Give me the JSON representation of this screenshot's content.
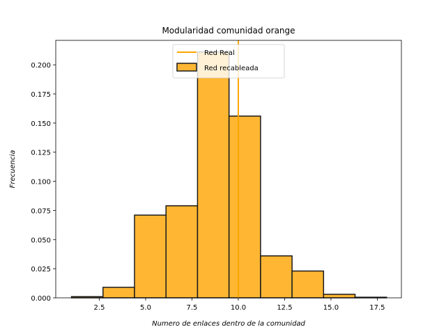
{
  "chart_data": {
    "type": "bar",
    "title": "Modularidad  comunidad orange",
    "xlabel": "Numero de enlaces dentro de la comunidad",
    "ylabel": "Frecuencia",
    "xlim": [
      0.15,
      18.8
    ],
    "ylim": [
      0,
      0.221
    ],
    "xticks": [
      "2.5",
      "5.0",
      "7.5",
      "10.0",
      "12.5",
      "15.0",
      "17.5"
    ],
    "xtick_values": [
      2.5,
      5.0,
      7.5,
      10.0,
      12.5,
      15.0,
      17.5
    ],
    "yticks": [
      "0.000",
      "0.025",
      "0.050",
      "0.075",
      "0.100",
      "0.125",
      "0.150",
      "0.175",
      "0.200"
    ],
    "ytick_values": [
      0,
      0.025,
      0.05,
      0.075,
      0.1,
      0.125,
      0.15,
      0.175,
      0.2
    ],
    "bin_edges": [
      1.0,
      2.7,
      4.4,
      6.1,
      7.8,
      9.5,
      11.2,
      12.9,
      14.6,
      16.3,
      18.0
    ],
    "values": [
      0.001,
      0.009,
      0.071,
      0.079,
      0.211,
      0.156,
      0.036,
      0.023,
      0.003,
      0.0005
    ],
    "vline": 10.0,
    "grid": false,
    "legend_position": "top-center",
    "series": [
      {
        "name": "Red Real",
        "kind": "vline",
        "color": "#ffa500"
      },
      {
        "name": "Red recableada",
        "kind": "hist",
        "color": "#ffa500"
      }
    ],
    "colors": {
      "bar_fill": "#ffb733",
      "bar_edge": "#1a1a1a",
      "line": "#ffa500"
    }
  }
}
